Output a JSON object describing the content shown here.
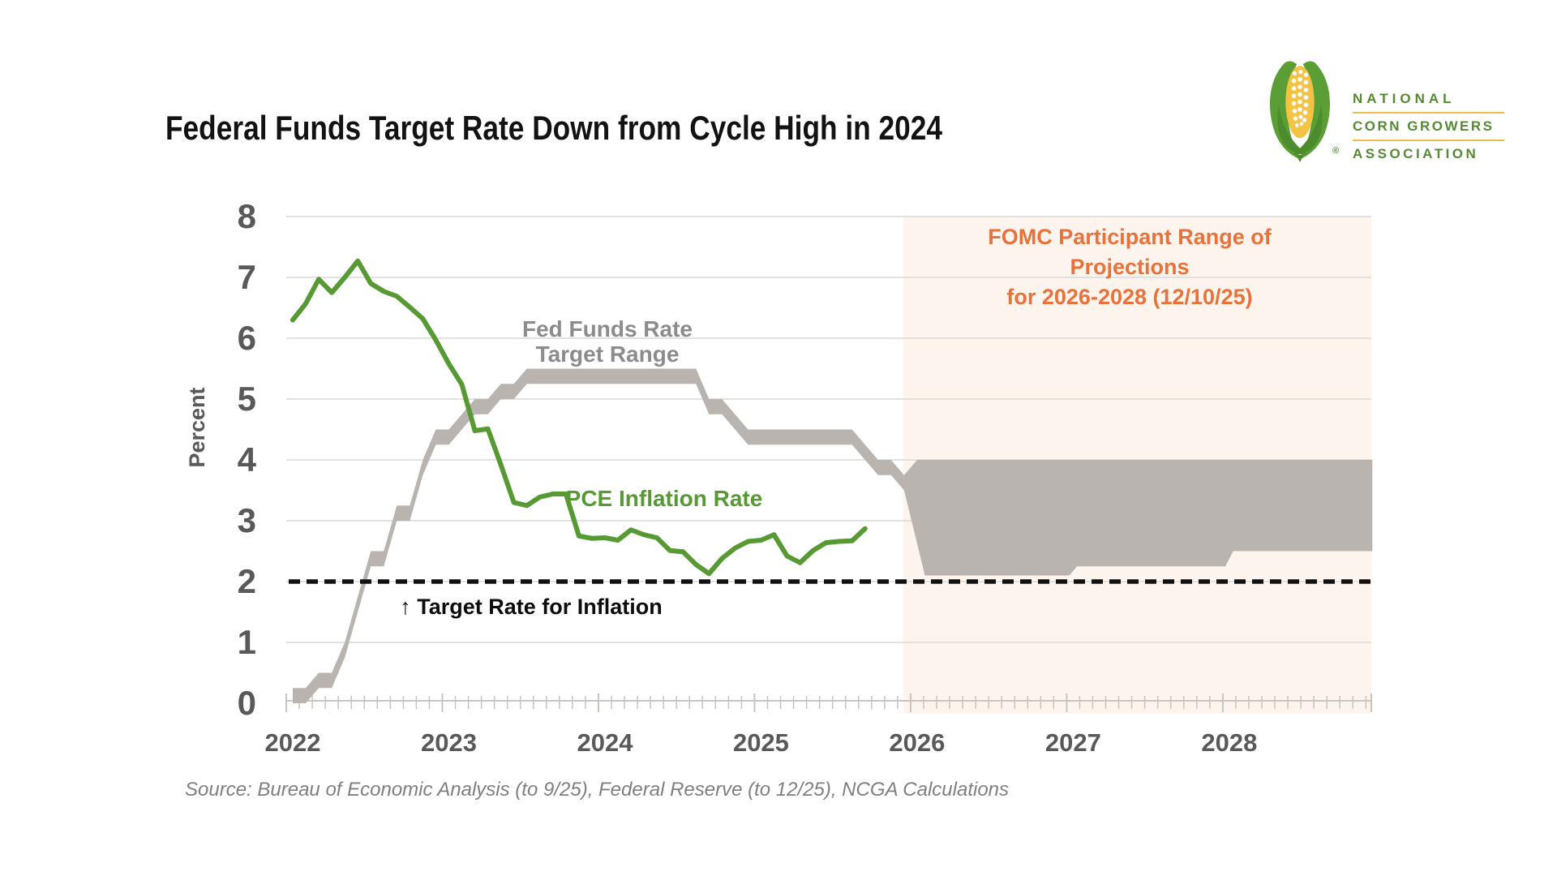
{
  "header": {
    "title": "Federal Funds Target Rate Down from Cycle High in 2024"
  },
  "logo": {
    "line1": "NATIONAL",
    "line2": "CORN GROWERS",
    "line3": "ASSOCIATION",
    "registered": "®"
  },
  "annotations": {
    "fed_label_line1": "Fed Funds Rate",
    "fed_label_line2": "Target Range",
    "pce_label": "PCE Inflation Rate",
    "target_label": "↑ Target Rate for Inflation",
    "fomc_label_line1": "FOMC Participant Range of Projections",
    "fomc_label_line2": "for 2026-2028 (12/10/25)"
  },
  "source_note": "Source: Bureau of Economic Analysis (to 9/25), Federal Reserve (to 12/25), NCGA Calculations",
  "colors": {
    "band": "#bab4b0",
    "green": "#579a33",
    "dashed": "#111111",
    "projection_bg": "#fdf4ee",
    "orange": "#e8723b",
    "grid": "#d9d9d9",
    "tick": "#c8c4c1",
    "axis_text": "#595959",
    "source_text": "#7f7f7f",
    "logo_green": "#568a35",
    "logo_gold": "#e8bf4a",
    "corn_yellow": "#f5c344",
    "corn_green": "#5c9e36",
    "corn_green_dark": "#4c8c2c"
  },
  "chart_data": {
    "type": "area",
    "title": "Federal Funds Target Rate Down from Cycle High in 2024",
    "xlabel": "",
    "ylabel": "Percent",
    "ylim": [
      0,
      8
    ],
    "yticks": [
      0,
      1,
      2,
      3,
      4,
      5,
      6,
      7,
      8
    ],
    "xtick_years": [
      2022,
      2023,
      2024,
      2025,
      2026,
      2027,
      2028
    ],
    "x_start_month": "2022-01",
    "x_end_month": "2028-12",
    "grid": "horizontal-only",
    "series": [
      {
        "name": "Fed Funds Rate Target Range",
        "type": "band",
        "months_start": "2022-01",
        "upper": [
          0.25,
          0.25,
          0.5,
          0.5,
          1.0,
          1.75,
          2.5,
          2.5,
          3.25,
          3.25,
          4.0,
          4.5,
          4.5,
          4.75,
          5.0,
          5.0,
          5.25,
          5.25,
          5.5,
          5.5,
          5.5,
          5.5,
          5.5,
          5.5,
          5.5,
          5.5,
          5.5,
          5.5,
          5.5,
          5.5,
          5.5,
          5.5,
          5.0,
          5.0,
          4.75,
          4.5,
          4.5,
          4.5,
          4.5,
          4.5,
          4.5,
          4.5,
          4.5,
          4.5,
          4.25,
          4.0,
          4.0,
          3.75
        ],
        "lower_offset": -0.25
      },
      {
        "name": "PCE Inflation Rate",
        "type": "line",
        "months_start": "2022-01",
        "values": [
          6.3,
          6.57,
          6.97,
          6.75,
          7.0,
          7.27,
          6.9,
          6.77,
          6.69,
          6.51,
          6.32,
          5.97,
          5.58,
          5.24,
          4.48,
          4.51,
          3.92,
          3.3,
          3.25,
          3.39,
          3.44,
          3.44,
          2.75,
          2.71,
          2.72,
          2.68,
          2.85,
          2.77,
          2.72,
          2.51,
          2.49,
          2.28,
          2.13,
          2.38,
          2.55,
          2.66,
          2.68,
          2.77,
          2.42,
          2.31,
          2.51,
          2.64,
          2.66,
          2.67,
          2.87
        ]
      },
      {
        "name": "Target Rate for Inflation",
        "type": "dashed-line",
        "value": 2.0
      },
      {
        "name": "FOMC Participant Range of Projections (12/10/25)",
        "type": "band-projection",
        "years": [
          {
            "year": 2026,
            "low": 2.1,
            "high": 4.0
          },
          {
            "year": 2027,
            "low": 2.25,
            "high": 4.0
          },
          {
            "year": 2028,
            "low": 2.5,
            "high": 4.0
          }
        ]
      }
    ],
    "projection_region": {
      "start": "2025-12",
      "end": "2028-12"
    },
    "legend_position": "inline-annotations"
  }
}
